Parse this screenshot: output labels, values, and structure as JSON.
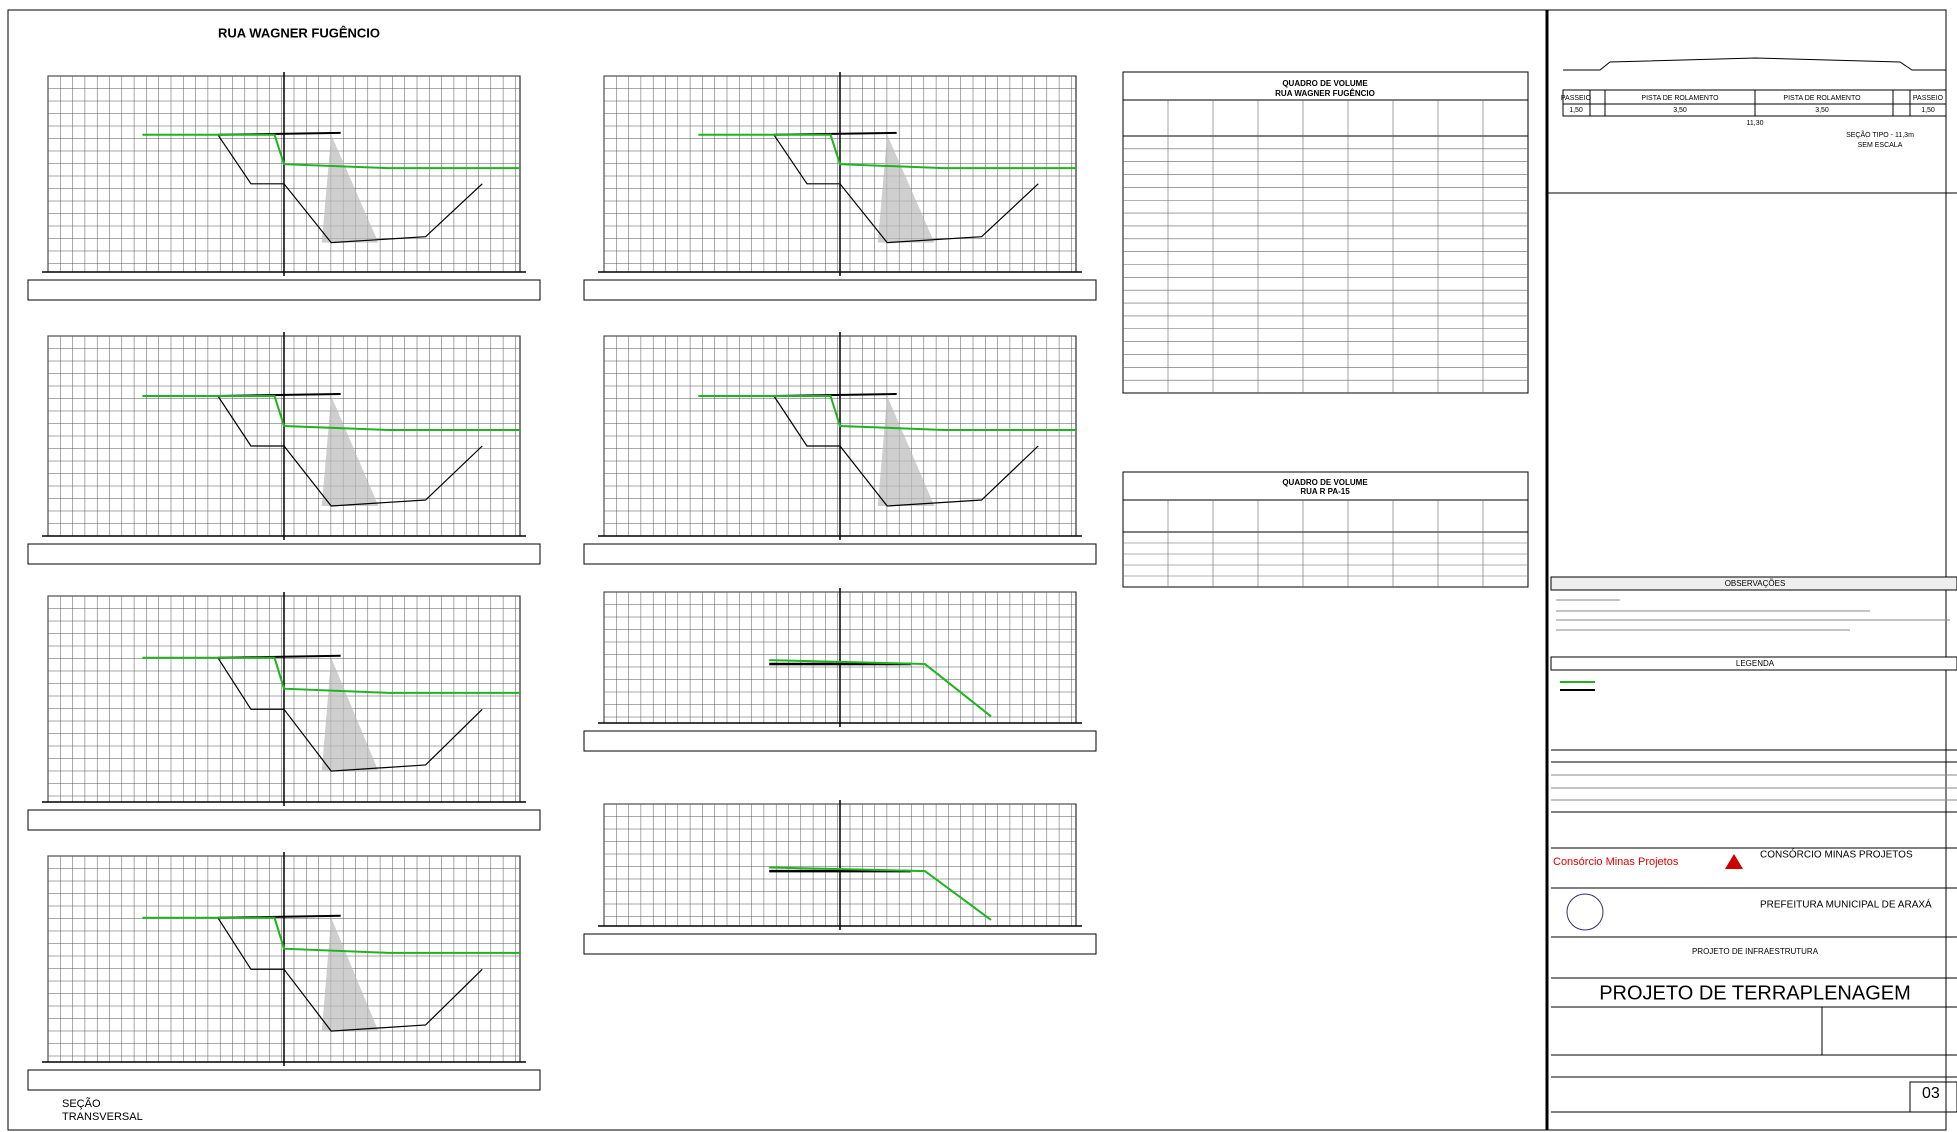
{
  "drawing": {
    "title": "RUA WAGNER FUGÊNCIO",
    "caption": [
      "SEÇÃO",
      "TRANSVERSAL"
    ]
  },
  "volume_tables": [
    {
      "title": "QUADRO DE VOLUME",
      "subtitle": "RUA WAGNER FUGÊNCIO"
    },
    {
      "title": "QUADRO DE VOLUME",
      "subtitle": "RUA R PA-15"
    }
  ],
  "typical_section": {
    "labels": [
      "PASSEIO",
      "PISTA DE ROLAMENTO",
      "PISTA DE ROLAMENTO",
      "PASSEIO"
    ],
    "dims": [
      "1,50",
      "3,50",
      "3,50",
      "1,50"
    ],
    "total": "11,30",
    "caption": "SEÇÃO TIPO - 11,3m",
    "scale": "SEM ESCALA"
  },
  "title_block": {
    "observations": "OBSERVAÇÕES",
    "legend": "LEGENDA",
    "consortium": "Consórcio Minas Projetos",
    "consortium_caps": "CONSÓRCIO MINAS PROJETOS",
    "client": "PREFEITURA MUNICIPAL DE ARAXÁ",
    "project": "PROJETO DE INFRAESTRUTURA",
    "drawing_title": "PROJETO DE TERRAPLENAGEM",
    "sheet": "03"
  }
}
